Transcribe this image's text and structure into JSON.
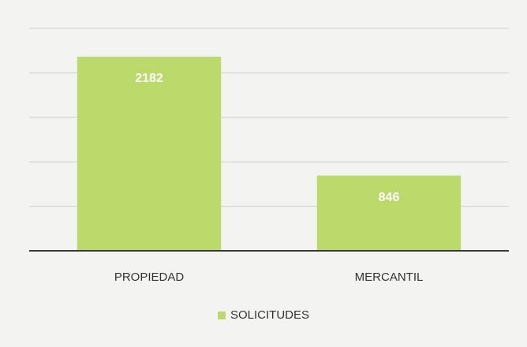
{
  "chart_data": {
    "type": "bar",
    "categories": [
      "PROPIEDAD",
      "MERCANTIL"
    ],
    "series": [
      {
        "name": "SOLICITUDES",
        "color": "#bcd96c",
        "values": [
          2182,
          846
        ]
      }
    ],
    "ylim": [
      0,
      2500
    ],
    "yticks": [
      0,
      500,
      1000,
      1500,
      2000,
      2500
    ],
    "grid": true,
    "legend": "bottom"
  }
}
